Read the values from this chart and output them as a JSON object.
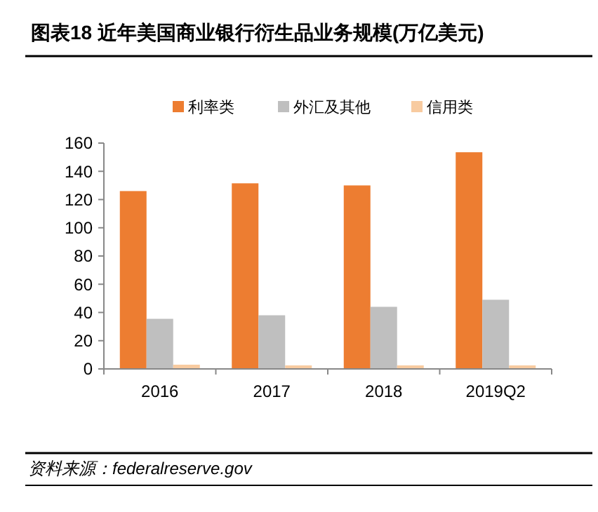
{
  "chart_data": {
    "type": "bar",
    "title": "图表18   近年美国商业银行衍生品业务规模(万亿美元)",
    "categories": [
      "2016",
      "2017",
      "2018",
      "2019Q2"
    ],
    "series": [
      {
        "name": "利率类",
        "color": "#ed7d31",
        "values": [
          126,
          131.5,
          130,
          153.5
        ]
      },
      {
        "name": "外汇及其他",
        "color": "#bfbfbf",
        "values": [
          35.5,
          38,
          44,
          49
        ]
      },
      {
        "name": "信用类",
        "color": "#f8cba0",
        "values": [
          3,
          2.5,
          2.5,
          2.5
        ]
      }
    ],
    "ylim": [
      0,
      160
    ],
    "yticks": [
      0,
      20,
      40,
      60,
      80,
      100,
      120,
      140,
      160
    ],
    "legend": "top",
    "grid": false,
    "annotations": [
      "资料来源：federalreserve.gov"
    ]
  }
}
